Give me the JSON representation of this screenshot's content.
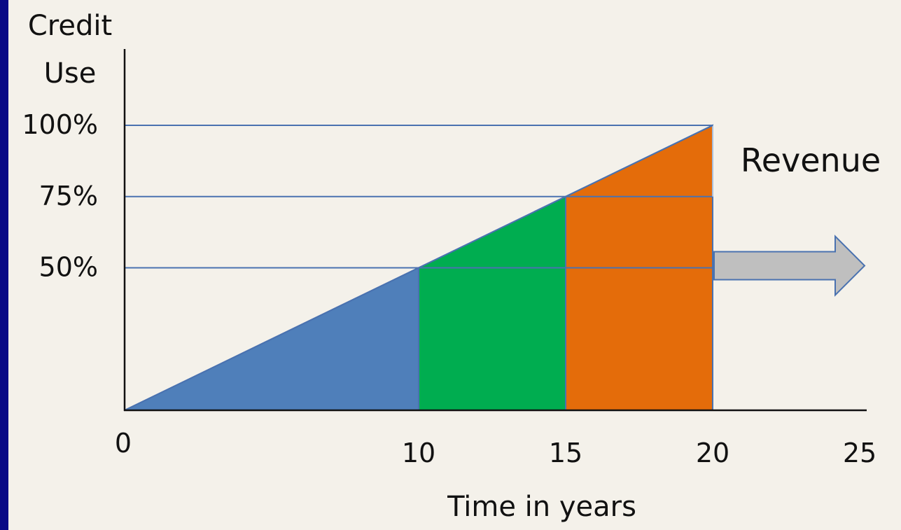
{
  "colors": {
    "background": "#f4f1ea",
    "left_bar": "#0b0b86",
    "axis": "#111111",
    "grid": "#4a72b0",
    "blue": "#4f7fba",
    "green": "#00ad50",
    "orange": "#e46c0a",
    "arrow_fill": "#bfbfbf",
    "arrow_stroke": "#4a72b0"
  },
  "chart_data": {
    "type": "area",
    "ylabel_lines": [
      "Credit",
      "Use"
    ],
    "xlabel": "Time in years",
    "x_ticks": [
      {
        "value": 0,
        "label": "0"
      },
      {
        "value": 10,
        "label": "10"
      },
      {
        "value": 15,
        "label": "15"
      },
      {
        "value": 20,
        "label": "20"
      },
      {
        "value": 25,
        "label": "25"
      }
    ],
    "y_ticks": [
      {
        "value": 50,
        "label": "50%"
      },
      {
        "value": 75,
        "label": "75%"
      },
      {
        "value": 100,
        "label": "100%"
      }
    ],
    "xlim": [
      0,
      25
    ],
    "ylim": [
      0,
      100
    ],
    "line": {
      "x": [
        0,
        20
      ],
      "y": [
        0,
        100
      ]
    },
    "segments": [
      {
        "name": "",
        "x_start": 0,
        "x_end": 10,
        "shape": "triangle",
        "color_key": "blue"
      },
      {
        "name": "",
        "x_start": 10,
        "x_end": 15,
        "shape": "rectangle-with-triangle",
        "color_key": "green"
      },
      {
        "name": "",
        "x_start": 15,
        "x_end": 20,
        "shape": "rectangle-with-triangle",
        "color_key": "orange"
      }
    ],
    "reference_lines_y": [
      50,
      75,
      100
    ],
    "annotation": {
      "text": "Revenue",
      "arrow_x_start": 20,
      "arrow_y_level": 50,
      "direction": "right"
    }
  }
}
